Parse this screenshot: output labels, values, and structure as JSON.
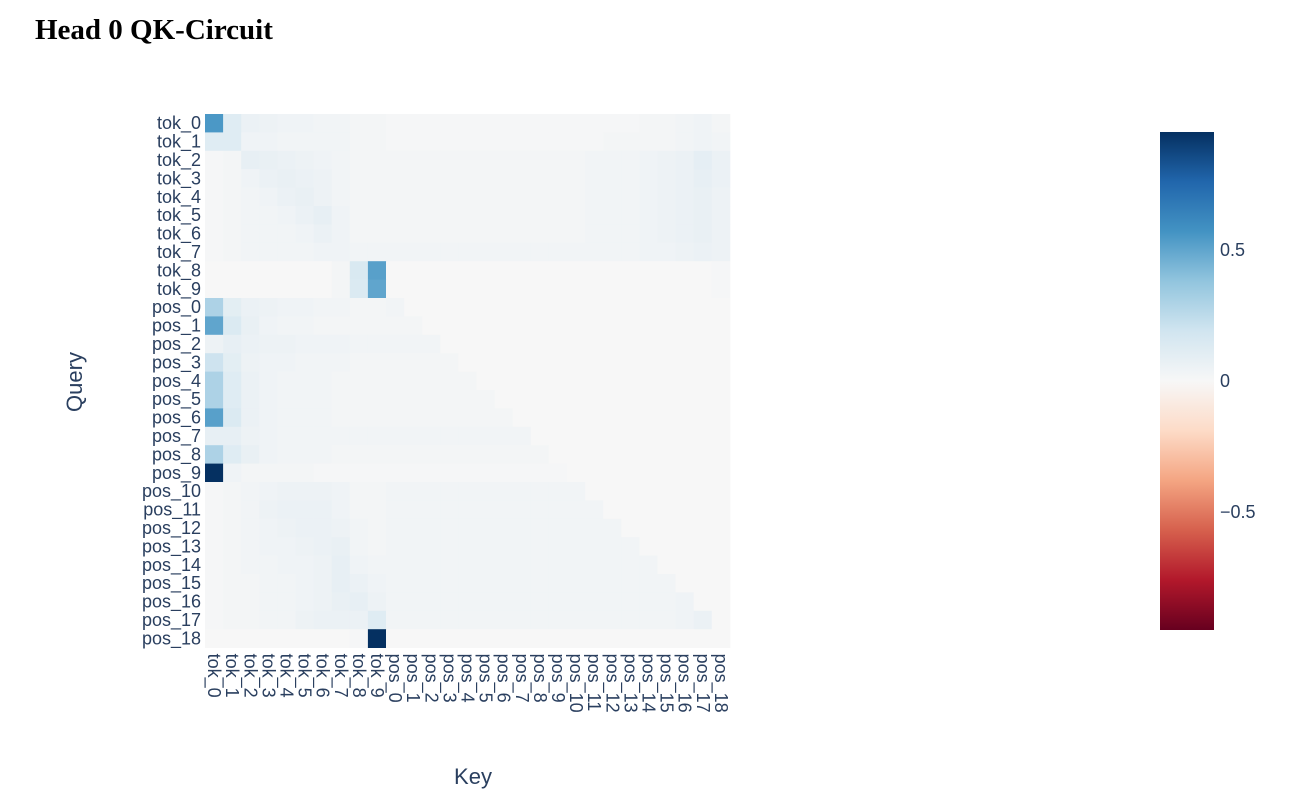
{
  "title": "Head 0 QK-Circuit",
  "chart_data": {
    "type": "heatmap",
    "title": "Head 0 QK-Circuit",
    "xlabel": "Key",
    "ylabel": "Query",
    "x": [
      "tok_0",
      "tok_1",
      "tok_2",
      "tok_3",
      "tok_4",
      "tok_5",
      "tok_6",
      "tok_7",
      "tok_8",
      "tok_9",
      "pos_0",
      "pos_1",
      "pos_2",
      "pos_3",
      "pos_4",
      "pos_5",
      "pos_6",
      "pos_7",
      "pos_8",
      "pos_9",
      "pos_10",
      "pos_11",
      "pos_12",
      "pos_13",
      "pos_14",
      "pos_15",
      "pos_16",
      "pos_17",
      "pos_18"
    ],
    "y": [
      "tok_0",
      "tok_1",
      "tok_2",
      "tok_3",
      "tok_4",
      "tok_5",
      "tok_6",
      "tok_7",
      "tok_8",
      "tok_9",
      "pos_0",
      "pos_1",
      "pos_2",
      "pos_3",
      "pos_4",
      "pos_5",
      "pos_6",
      "pos_7",
      "pos_8",
      "pos_9",
      "pos_10",
      "pos_11",
      "pos_12",
      "pos_13",
      "pos_14",
      "pos_15",
      "pos_16",
      "pos_17",
      "pos_18"
    ],
    "colorscale": "RdBu",
    "zmin": -0.95,
    "zmax": 0.95,
    "colorbar_ticks": [
      0.5,
      0,
      -0.5
    ],
    "colorbar_ticklabels": [
      "0.5",
      "0",
      "−0.5"
    ],
    "z": [
      [
        0.55,
        0.12,
        0.06,
        0.05,
        0.04,
        0.04,
        0.03,
        0.03,
        0.02,
        0.02,
        0.01,
        0.01,
        0.01,
        0.01,
        0.01,
        0.01,
        0.01,
        0.01,
        0.01,
        0.01,
        0.01,
        0.01,
        0.01,
        0.01,
        0.02,
        0.02,
        0.03,
        0.04,
        0.02
      ],
      [
        0.12,
        0.12,
        0.04,
        0.04,
        0.03,
        0.03,
        0.03,
        0.03,
        0.02,
        0.02,
        0.01,
        0.01,
        0.01,
        0.01,
        0.01,
        0.01,
        0.01,
        0.01,
        0.01,
        0.01,
        0.01,
        0.01,
        0.02,
        0.02,
        0.02,
        0.02,
        0.03,
        0.04,
        0.03
      ],
      [
        0.01,
        0.02,
        0.08,
        0.07,
        0.06,
        0.05,
        0.04,
        0.03,
        0.02,
        0.02,
        0.02,
        0.02,
        0.02,
        0.02,
        0.02,
        0.02,
        0.02,
        0.02,
        0.02,
        0.02,
        0.02,
        0.03,
        0.03,
        0.03,
        0.04,
        0.05,
        0.06,
        0.09,
        0.06
      ],
      [
        0.01,
        0.02,
        0.04,
        0.06,
        0.07,
        0.06,
        0.05,
        0.03,
        0.02,
        0.02,
        0.02,
        0.02,
        0.02,
        0.02,
        0.02,
        0.02,
        0.02,
        0.02,
        0.02,
        0.02,
        0.02,
        0.03,
        0.03,
        0.03,
        0.04,
        0.05,
        0.06,
        0.08,
        0.06
      ],
      [
        0.01,
        0.02,
        0.03,
        0.04,
        0.06,
        0.07,
        0.05,
        0.03,
        0.02,
        0.02,
        0.02,
        0.02,
        0.02,
        0.02,
        0.02,
        0.02,
        0.02,
        0.02,
        0.02,
        0.02,
        0.02,
        0.03,
        0.03,
        0.03,
        0.04,
        0.05,
        0.06,
        0.07,
        0.05
      ],
      [
        0.01,
        0.02,
        0.03,
        0.03,
        0.04,
        0.06,
        0.08,
        0.04,
        0.02,
        0.02,
        0.02,
        0.02,
        0.02,
        0.02,
        0.02,
        0.02,
        0.02,
        0.02,
        0.02,
        0.02,
        0.02,
        0.03,
        0.03,
        0.03,
        0.04,
        0.05,
        0.06,
        0.07,
        0.05
      ],
      [
        0.01,
        0.02,
        0.03,
        0.03,
        0.03,
        0.04,
        0.06,
        0.04,
        0.02,
        0.02,
        0.02,
        0.02,
        0.02,
        0.02,
        0.02,
        0.02,
        0.02,
        0.02,
        0.02,
        0.02,
        0.02,
        0.03,
        0.03,
        0.03,
        0.04,
        0.05,
        0.06,
        0.07,
        0.05
      ],
      [
        0.01,
        0.02,
        0.03,
        0.03,
        0.03,
        0.03,
        0.04,
        0.04,
        0.03,
        0.03,
        0.03,
        0.03,
        0.03,
        0.03,
        0.03,
        0.03,
        0.03,
        0.03,
        0.03,
        0.03,
        0.03,
        0.03,
        0.03,
        0.03,
        0.04,
        0.04,
        0.05,
        0.06,
        0.05
      ],
      [
        0.0,
        0.0,
        0.0,
        0.0,
        0.0,
        0.0,
        0.0,
        0.02,
        0.15,
        0.52,
        0.0,
        0.0,
        0.0,
        0.0,
        0.0,
        0.0,
        0.0,
        0.0,
        0.0,
        0.0,
        0.0,
        0.0,
        0.0,
        0.0,
        0.0,
        0.0,
        0.0,
        0.0,
        0.01
      ],
      [
        0.0,
        0.0,
        0.0,
        0.0,
        0.0,
        0.0,
        0.0,
        0.02,
        0.14,
        0.5,
        0.0,
        0.0,
        0.0,
        0.0,
        0.0,
        0.0,
        0.0,
        0.0,
        0.0,
        0.0,
        0.0,
        0.0,
        0.0,
        0.0,
        0.0,
        0.0,
        0.0,
        0.0,
        0.01
      ],
      [
        0.3,
        0.1,
        0.06,
        0.05,
        0.04,
        0.04,
        0.03,
        0.03,
        0.02,
        0.02,
        0.03,
        0.0,
        0.0,
        0.0,
        0.0,
        0.0,
        0.0,
        0.0,
        0.0,
        0.0,
        0.0,
        0.0,
        0.0,
        0.0,
        0.0,
        0.0,
        0.0,
        0.0,
        0.0
      ],
      [
        0.5,
        0.14,
        0.07,
        0.04,
        0.03,
        0.03,
        0.02,
        0.02,
        0.02,
        0.02,
        0.02,
        0.02,
        0.0,
        0.0,
        0.0,
        0.0,
        0.0,
        0.0,
        0.0,
        0.0,
        0.0,
        0.0,
        0.0,
        0.0,
        0.0,
        0.0,
        0.0,
        0.0,
        0.0
      ],
      [
        0.05,
        0.08,
        0.06,
        0.05,
        0.05,
        0.04,
        0.04,
        0.04,
        0.03,
        0.03,
        0.03,
        0.03,
        0.03,
        0.0,
        0.0,
        0.0,
        0.0,
        0.0,
        0.0,
        0.0,
        0.0,
        0.0,
        0.0,
        0.0,
        0.0,
        0.0,
        0.0,
        0.0,
        0.0
      ],
      [
        0.2,
        0.1,
        0.05,
        0.04,
        0.04,
        0.03,
        0.03,
        0.03,
        0.02,
        0.02,
        0.02,
        0.02,
        0.02,
        0.02,
        0.0,
        0.0,
        0.0,
        0.0,
        0.0,
        0.0,
        0.0,
        0.0,
        0.0,
        0.0,
        0.0,
        0.0,
        0.0,
        0.0,
        0.0
      ],
      [
        0.3,
        0.12,
        0.06,
        0.04,
        0.03,
        0.03,
        0.03,
        0.02,
        0.02,
        0.02,
        0.02,
        0.02,
        0.02,
        0.02,
        0.02,
        0.0,
        0.0,
        0.0,
        0.0,
        0.0,
        0.0,
        0.0,
        0.0,
        0.0,
        0.0,
        0.0,
        0.0,
        0.0,
        0.0
      ],
      [
        0.3,
        0.12,
        0.06,
        0.04,
        0.03,
        0.03,
        0.03,
        0.02,
        0.02,
        0.02,
        0.02,
        0.02,
        0.02,
        0.02,
        0.02,
        0.02,
        0.0,
        0.0,
        0.0,
        0.0,
        0.0,
        0.0,
        0.0,
        0.0,
        0.0,
        0.0,
        0.0,
        0.0,
        0.0
      ],
      [
        0.52,
        0.14,
        0.06,
        0.04,
        0.03,
        0.03,
        0.03,
        0.02,
        0.02,
        0.02,
        0.02,
        0.02,
        0.02,
        0.02,
        0.02,
        0.02,
        0.02,
        0.0,
        0.0,
        0.0,
        0.0,
        0.0,
        0.0,
        0.0,
        0.0,
        0.0,
        0.0,
        0.0,
        0.0
      ],
      [
        0.08,
        0.08,
        0.05,
        0.04,
        0.03,
        0.03,
        0.03,
        0.03,
        0.03,
        0.03,
        0.03,
        0.03,
        0.03,
        0.03,
        0.03,
        0.03,
        0.03,
        0.03,
        0.0,
        0.0,
        0.0,
        0.0,
        0.0,
        0.0,
        0.0,
        0.0,
        0.0,
        0.0,
        0.0
      ],
      [
        0.3,
        0.12,
        0.07,
        0.04,
        0.03,
        0.03,
        0.03,
        0.02,
        0.02,
        0.02,
        0.02,
        0.02,
        0.02,
        0.02,
        0.02,
        0.02,
        0.02,
        0.02,
        0.02,
        0.0,
        0.0,
        0.0,
        0.0,
        0.0,
        0.0,
        0.0,
        0.0,
        0.0,
        0.0
      ],
      [
        0.95,
        0.04,
        0.02,
        0.02,
        0.02,
        0.02,
        0.01,
        0.01,
        0.01,
        0.01,
        0.01,
        0.01,
        0.01,
        0.01,
        0.01,
        0.01,
        0.01,
        0.01,
        0.01,
        0.01,
        0.0,
        0.0,
        0.0,
        0.0,
        0.0,
        0.0,
        0.0,
        0.0,
        0.0
      ],
      [
        0.01,
        0.02,
        0.03,
        0.04,
        0.05,
        0.05,
        0.05,
        0.04,
        0.02,
        0.02,
        0.03,
        0.03,
        0.03,
        0.03,
        0.03,
        0.03,
        0.03,
        0.03,
        0.03,
        0.03,
        0.03,
        0.0,
        0.0,
        0.0,
        0.0,
        0.0,
        0.0,
        0.0,
        0.0
      ],
      [
        0.01,
        0.02,
        0.03,
        0.05,
        0.06,
        0.06,
        0.06,
        0.04,
        0.02,
        0.02,
        0.03,
        0.03,
        0.03,
        0.03,
        0.03,
        0.03,
        0.03,
        0.03,
        0.03,
        0.03,
        0.03,
        0.03,
        0.0,
        0.0,
        0.0,
        0.0,
        0.0,
        0.0,
        0.0
      ],
      [
        0.01,
        0.02,
        0.03,
        0.04,
        0.05,
        0.06,
        0.06,
        0.05,
        0.03,
        0.02,
        0.03,
        0.03,
        0.03,
        0.03,
        0.03,
        0.03,
        0.03,
        0.03,
        0.03,
        0.03,
        0.03,
        0.03,
        0.03,
        0.0,
        0.0,
        0.0,
        0.0,
        0.0,
        0.0
      ],
      [
        0.01,
        0.02,
        0.03,
        0.04,
        0.04,
        0.05,
        0.06,
        0.07,
        0.03,
        0.02,
        0.03,
        0.03,
        0.03,
        0.03,
        0.03,
        0.03,
        0.03,
        0.03,
        0.03,
        0.03,
        0.03,
        0.03,
        0.03,
        0.03,
        0.0,
        0.0,
        0.0,
        0.0,
        0.0
      ],
      [
        0.01,
        0.02,
        0.03,
        0.03,
        0.04,
        0.04,
        0.05,
        0.08,
        0.04,
        0.03,
        0.03,
        0.03,
        0.03,
        0.03,
        0.03,
        0.03,
        0.03,
        0.03,
        0.03,
        0.03,
        0.03,
        0.03,
        0.03,
        0.03,
        0.03,
        0.0,
        0.0,
        0.0,
        0.0
      ],
      [
        0.01,
        0.02,
        0.02,
        0.03,
        0.03,
        0.04,
        0.05,
        0.08,
        0.06,
        0.04,
        0.03,
        0.03,
        0.03,
        0.03,
        0.03,
        0.03,
        0.03,
        0.03,
        0.03,
        0.03,
        0.03,
        0.03,
        0.03,
        0.03,
        0.03,
        0.03,
        0.0,
        0.0,
        0.0
      ],
      [
        0.01,
        0.02,
        0.02,
        0.03,
        0.03,
        0.04,
        0.05,
        0.07,
        0.08,
        0.05,
        0.03,
        0.03,
        0.03,
        0.03,
        0.03,
        0.03,
        0.03,
        0.03,
        0.03,
        0.03,
        0.03,
        0.03,
        0.03,
        0.03,
        0.03,
        0.03,
        0.04,
        0.0,
        0.0
      ],
      [
        0.01,
        0.02,
        0.02,
        0.03,
        0.03,
        0.05,
        0.06,
        0.06,
        0.06,
        0.12,
        0.03,
        0.03,
        0.03,
        0.03,
        0.03,
        0.03,
        0.03,
        0.03,
        0.03,
        0.03,
        0.03,
        0.03,
        0.03,
        0.03,
        0.03,
        0.03,
        0.04,
        0.06,
        0.0
      ],
      [
        0.0,
        0.0,
        0.0,
        0.0,
        0.0,
        0.0,
        0.0,
        0.0,
        0.01,
        0.95,
        0.0,
        0.0,
        0.0,
        0.0,
        0.0,
        0.0,
        0.0,
        0.0,
        0.0,
        0.0,
        0.0,
        0.0,
        0.0,
        0.0,
        0.0,
        0.0,
        0.0,
        0.0,
        0.0
      ]
    ]
  }
}
